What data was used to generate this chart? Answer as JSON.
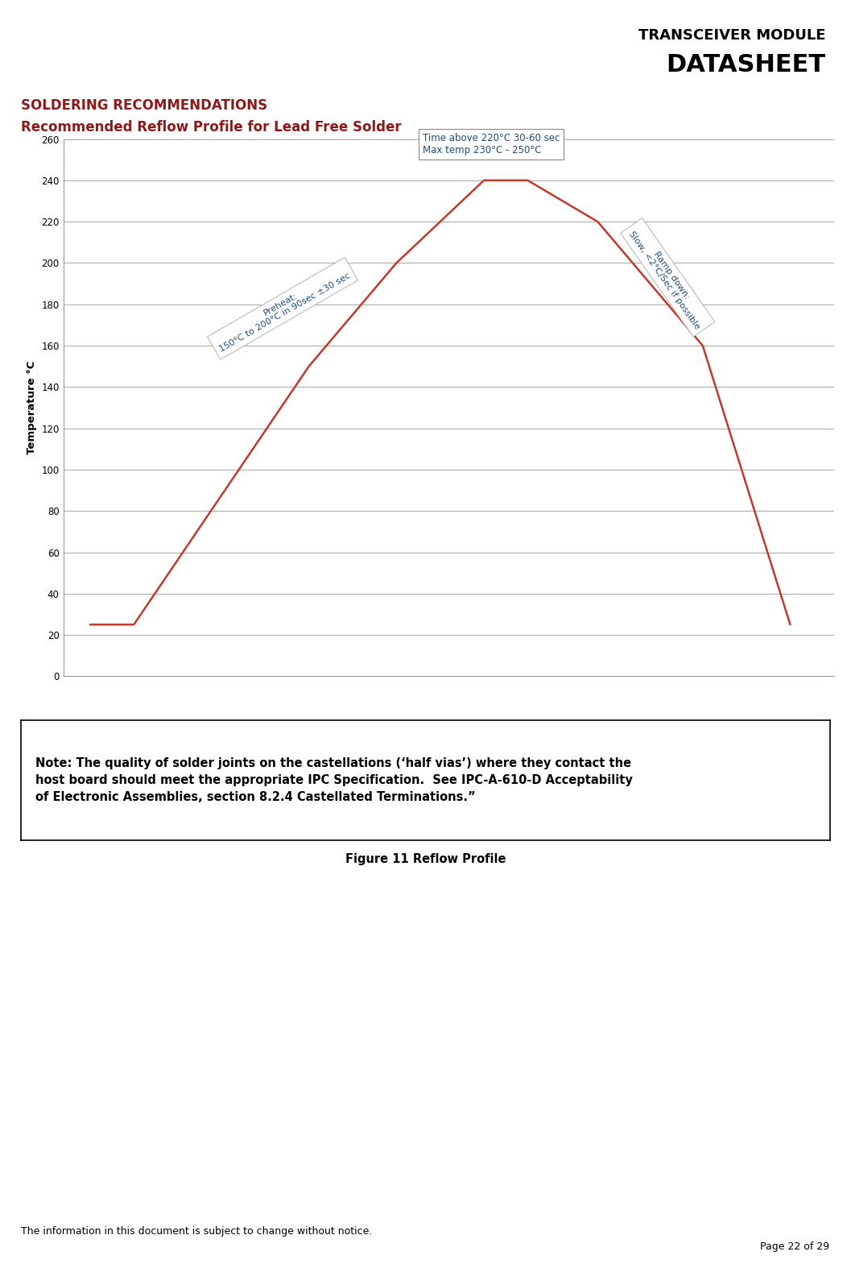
{
  "header_line1": "TRANSCEIVER MODULE",
  "header_line2": "DATASHEET",
  "section_title": "SOLDERING RECOMMENDATIONS",
  "subsection_title": "Recommended Reflow Profile for Lead Free Solder",
  "ylabel": "Temperature °C",
  "ylim": [
    0,
    260
  ],
  "yticks": [
    0,
    20,
    40,
    60,
    80,
    100,
    120,
    140,
    160,
    180,
    200,
    220,
    240,
    260
  ],
  "line_x": [
    0,
    0.5,
    2.5,
    3.5,
    4.5,
    5.0,
    5.8,
    7.0,
    8.0
  ],
  "line_y": [
    25,
    25,
    150,
    200,
    240,
    240,
    220,
    160,
    25
  ],
  "line_color": "#c0392b",
  "line_width": 1.8,
  "annotation_box1_text": "Time above 220°C 30-60 sec\nMax temp 230°C - 250°C",
  "annotation_preheat_text": "Preheat:\n150°C to 200°C in 90sec ±30 sec",
  "annotation_rampdown_text": "Ramp down:\nSlow, <2°C/Sec if possible",
  "note_text": "Note: The quality of solder joints on the castellations (‘half vias’) where they contact the\nhost board should meet the appropriate IPC Specification.  See IPC-A-610-D Acceptability\nof Electronic Assemblies, section 8.2.4 Castellated Terminations.”",
  "figure_caption": "Figure 11 Reflow Profile",
  "footer_text": "The information in this document is subject to change without notice.",
  "page_text": "Page 22 of 29",
  "header_color": "#000000",
  "section_color": "#8b1a1a",
  "subsection_color": "#8b1a1a",
  "annotation_color": "#1f4e79",
  "grid_color": "#999999",
  "background_color": "#ffffff"
}
